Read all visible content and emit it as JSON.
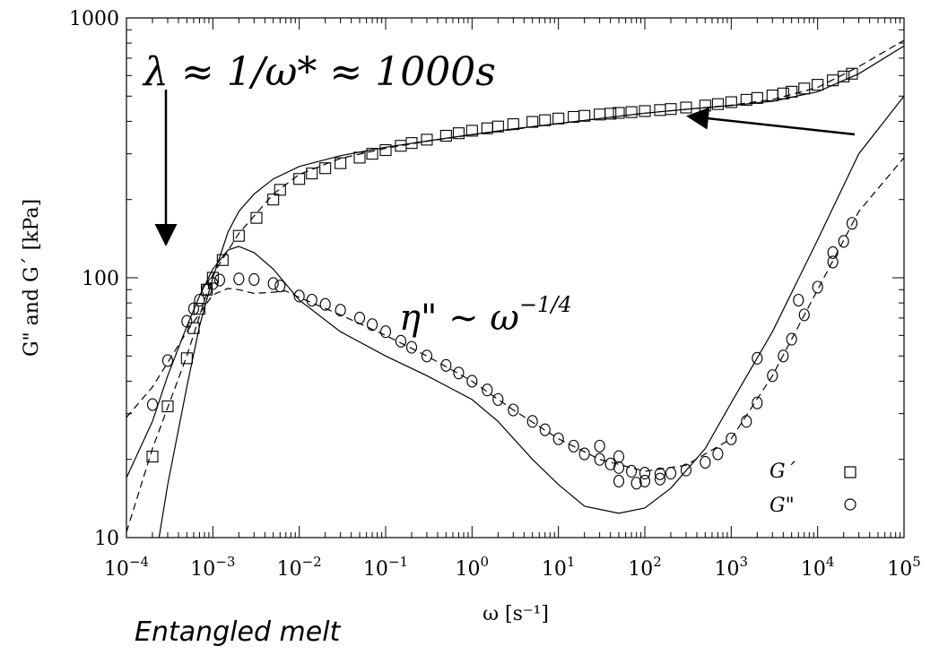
{
  "chart_data": {
    "type": "scatter",
    "xlabel": "ω [s⁻¹]",
    "ylabel": "G\" and G´ [kPa]",
    "x_scale": "log",
    "y_scale": "log",
    "xlim": [
      0.0001,
      100000
    ],
    "ylim": [
      10,
      1000
    ],
    "x_ticks": [
      {
        "value": 0.0001,
        "base": "10",
        "exp": "−4"
      },
      {
        "value": 0.001,
        "base": "10",
        "exp": "−3"
      },
      {
        "value": 0.01,
        "base": "10",
        "exp": "−2"
      },
      {
        "value": 0.1,
        "base": "10",
        "exp": "−1"
      },
      {
        "value": 1,
        "base": "10",
        "exp": "0"
      },
      {
        "value": 10,
        "base": "10",
        "exp": "1"
      },
      {
        "value": 100,
        "base": "10",
        "exp": "2"
      },
      {
        "value": 1000,
        "base": "10",
        "exp": "3"
      },
      {
        "value": 10000,
        "base": "10",
        "exp": "4"
      },
      {
        "value": 100000,
        "base": "10",
        "exp": "5"
      }
    ],
    "y_ticks": [
      {
        "value": 10,
        "label": "10"
      },
      {
        "value": 100,
        "label": "100"
      },
      {
        "value": 1000,
        "label": "1000"
      }
    ],
    "legend_position": "bottom-right",
    "series": [
      {
        "name": "G´",
        "marker": "square",
        "points": [
          [
            0.0002,
            20.5
          ],
          [
            0.0003,
            32
          ],
          [
            0.0005,
            49
          ],
          [
            0.0006,
            64
          ],
          [
            0.0007,
            76
          ],
          [
            0.00085,
            90
          ],
          [
            0.001,
            100
          ],
          [
            0.0013,
            117
          ],
          [
            0.002,
            145
          ],
          [
            0.0032,
            170
          ],
          [
            0.005,
            200
          ],
          [
            0.006,
            218
          ],
          [
            0.01,
            240
          ],
          [
            0.014,
            252
          ],
          [
            0.02,
            264
          ],
          [
            0.03,
            276
          ],
          [
            0.05,
            290
          ],
          [
            0.07,
            300
          ],
          [
            0.1,
            310
          ],
          [
            0.15,
            322
          ],
          [
            0.2,
            330
          ],
          [
            0.3,
            340
          ],
          [
            0.5,
            352
          ],
          [
            0.7,
            360
          ],
          [
            1,
            368
          ],
          [
            1.5,
            376
          ],
          [
            2,
            382
          ],
          [
            3,
            390
          ],
          [
            5,
            398
          ],
          [
            7,
            404
          ],
          [
            10,
            410
          ],
          [
            15,
            416
          ],
          [
            20,
            420
          ],
          [
            30,
            425
          ],
          [
            40,
            428
          ],
          [
            50,
            431
          ],
          [
            70,
            434
          ],
          [
            100,
            438
          ],
          [
            150,
            442
          ],
          [
            200,
            446
          ],
          [
            300,
            452
          ],
          [
            500,
            460
          ],
          [
            700,
            466
          ],
          [
            1000,
            474
          ],
          [
            1500,
            484
          ],
          [
            2000,
            492
          ],
          [
            3000,
            503
          ],
          [
            4000,
            512
          ],
          [
            5000,
            520
          ],
          [
            7000,
            535
          ],
          [
            10000,
            553
          ],
          [
            15000,
            575
          ],
          [
            20000,
            595
          ],
          [
            25000,
            610
          ]
        ]
      },
      {
        "name": "G\"",
        "marker": "circle",
        "points": [
          [
            0.0002,
            32.5
          ],
          [
            0.0003,
            48
          ],
          [
            0.0005,
            68
          ],
          [
            0.0006,
            76
          ],
          [
            0.0007,
            82
          ],
          [
            0.00085,
            90
          ],
          [
            0.001,
            95
          ],
          [
            0.0012,
            98
          ],
          [
            0.002,
            99
          ],
          [
            0.003,
            98.5
          ],
          [
            0.005,
            95
          ],
          [
            0.006,
            93
          ],
          [
            0.01,
            85
          ],
          [
            0.014,
            82
          ],
          [
            0.02,
            79
          ],
          [
            0.03,
            75
          ],
          [
            0.05,
            70
          ],
          [
            0.07,
            66
          ],
          [
            0.1,
            62
          ],
          [
            0.15,
            57
          ],
          [
            0.2,
            54
          ],
          [
            0.3,
            50
          ],
          [
            0.5,
            46
          ],
          [
            0.7,
            43
          ],
          [
            1,
            40
          ],
          [
            1.5,
            37
          ],
          [
            2,
            34
          ],
          [
            3,
            31
          ],
          [
            5,
            28
          ],
          [
            7,
            26
          ],
          [
            10,
            24
          ],
          [
            15,
            22.5
          ],
          [
            20,
            21
          ],
          [
            30,
            20
          ],
          [
            40,
            19.2
          ],
          [
            50,
            18.6
          ],
          [
            70,
            18
          ],
          [
            100,
            17.7
          ],
          [
            150,
            17.6
          ],
          [
            200,
            17.7
          ],
          [
            300,
            18.2
          ],
          [
            500,
            19.5
          ],
          [
            700,
            21
          ],
          [
            1000,
            24
          ],
          [
            1500,
            28
          ],
          [
            2000,
            33
          ],
          [
            3000,
            42
          ],
          [
            4000,
            50
          ],
          [
            5000,
            58
          ],
          [
            7000,
            72
          ],
          [
            10000,
            92
          ],
          [
            15000,
            115
          ],
          [
            20000,
            138
          ],
          [
            25000,
            162
          ],
          [
            30,
            22.5
          ],
          [
            50,
            20.5
          ],
          [
            50,
            16.5
          ],
          [
            80,
            16.2
          ],
          [
            100,
            16.5
          ],
          [
            150,
            16.8
          ],
          [
            2000,
            49
          ],
          [
            6000,
            82
          ],
          [
            15000,
            125
          ]
        ]
      }
    ],
    "model_curves": [
      {
        "style": "solid",
        "points": [
          [
            0.0002,
            7
          ],
          [
            0.0003,
            16
          ],
          [
            0.0005,
            38
          ],
          [
            0.0007,
            65
          ],
          [
            0.001,
            100
          ],
          [
            0.0015,
            150
          ],
          [
            0.002,
            180
          ],
          [
            0.003,
            210
          ],
          [
            0.005,
            240
          ],
          [
            0.01,
            268
          ],
          [
            0.03,
            295
          ],
          [
            0.1,
            318
          ],
          [
            0.3,
            336
          ],
          [
            1,
            356
          ],
          [
            3,
            374
          ],
          [
            10,
            392
          ],
          [
            30,
            410
          ],
          [
            100,
            430
          ],
          [
            300,
            445
          ],
          [
            1000,
            460
          ],
          [
            3000,
            478
          ],
          [
            10000,
            520
          ],
          [
            30000,
            610
          ],
          [
            100000,
            780
          ]
        ]
      },
      {
        "style": "solid",
        "points": [
          [
            0.0001,
            17
          ],
          [
            0.0002,
            28
          ],
          [
            0.0003,
            42
          ],
          [
            0.0005,
            65
          ],
          [
            0.0007,
            85
          ],
          [
            0.001,
            108
          ],
          [
            0.0015,
            128
          ],
          [
            0.002,
            132
          ],
          [
            0.003,
            125
          ],
          [
            0.005,
            108
          ],
          [
            0.01,
            82
          ],
          [
            0.03,
            62
          ],
          [
            0.1,
            50
          ],
          [
            0.3,
            42
          ],
          [
            1,
            34
          ],
          [
            2,
            28
          ],
          [
            5,
            20
          ],
          [
            10,
            16
          ],
          [
            20,
            13.2
          ],
          [
            50,
            12.4
          ],
          [
            100,
            13
          ],
          [
            200,
            15.5
          ],
          [
            500,
            22
          ],
          [
            1000,
            33
          ],
          [
            3000,
            62
          ],
          [
            10000,
            140
          ],
          [
            30000,
            300
          ],
          [
            100000,
            500
          ]
        ]
      },
      {
        "style": "dashed",
        "points": [
          [
            0.0001,
            10.5
          ],
          [
            0.0002,
            22
          ],
          [
            0.0005,
            50
          ],
          [
            0.001,
            103
          ],
          [
            0.002,
            148
          ],
          [
            0.005,
            210
          ],
          [
            0.01,
            250
          ],
          [
            0.03,
            288
          ],
          [
            0.1,
            315
          ],
          [
            0.3,
            335
          ],
          [
            1,
            355
          ],
          [
            3,
            372
          ],
          [
            10,
            392
          ],
          [
            30,
            410
          ],
          [
            100,
            430
          ],
          [
            300,
            445
          ],
          [
            1000,
            462
          ],
          [
            3000,
            485
          ],
          [
            10000,
            540
          ],
          [
            30000,
            650
          ],
          [
            100000,
            820
          ]
        ]
      },
      {
        "style": "dashed",
        "points": [
          [
            0.0001,
            29
          ],
          [
            0.0002,
            38
          ],
          [
            0.0005,
            62
          ],
          [
            0.001,
            86
          ],
          [
            0.0015,
            91
          ],
          [
            0.002,
            90
          ],
          [
            0.003,
            87
          ],
          [
            0.005,
            88
          ],
          [
            0.007,
            89
          ],
          [
            0.01,
            84
          ],
          [
            0.03,
            72
          ],
          [
            0.1,
            60
          ],
          [
            0.3,
            50
          ],
          [
            1,
            40
          ],
          [
            3,
            31
          ],
          [
            10,
            24
          ],
          [
            30,
            20
          ],
          [
            100,
            18
          ],
          [
            300,
            19
          ],
          [
            1000,
            24
          ],
          [
            3000,
            42
          ],
          [
            10000,
            90
          ],
          [
            30000,
            180
          ],
          [
            100000,
            290
          ]
        ]
      }
    ],
    "annotations": {
      "relaxation_time": "λ ≈ 1/ω* ≈ 1000s",
      "power_law_lhs": "η\" ~ ω",
      "power_law_exp": "−1/4"
    }
  },
  "caption": "Entangled melt"
}
